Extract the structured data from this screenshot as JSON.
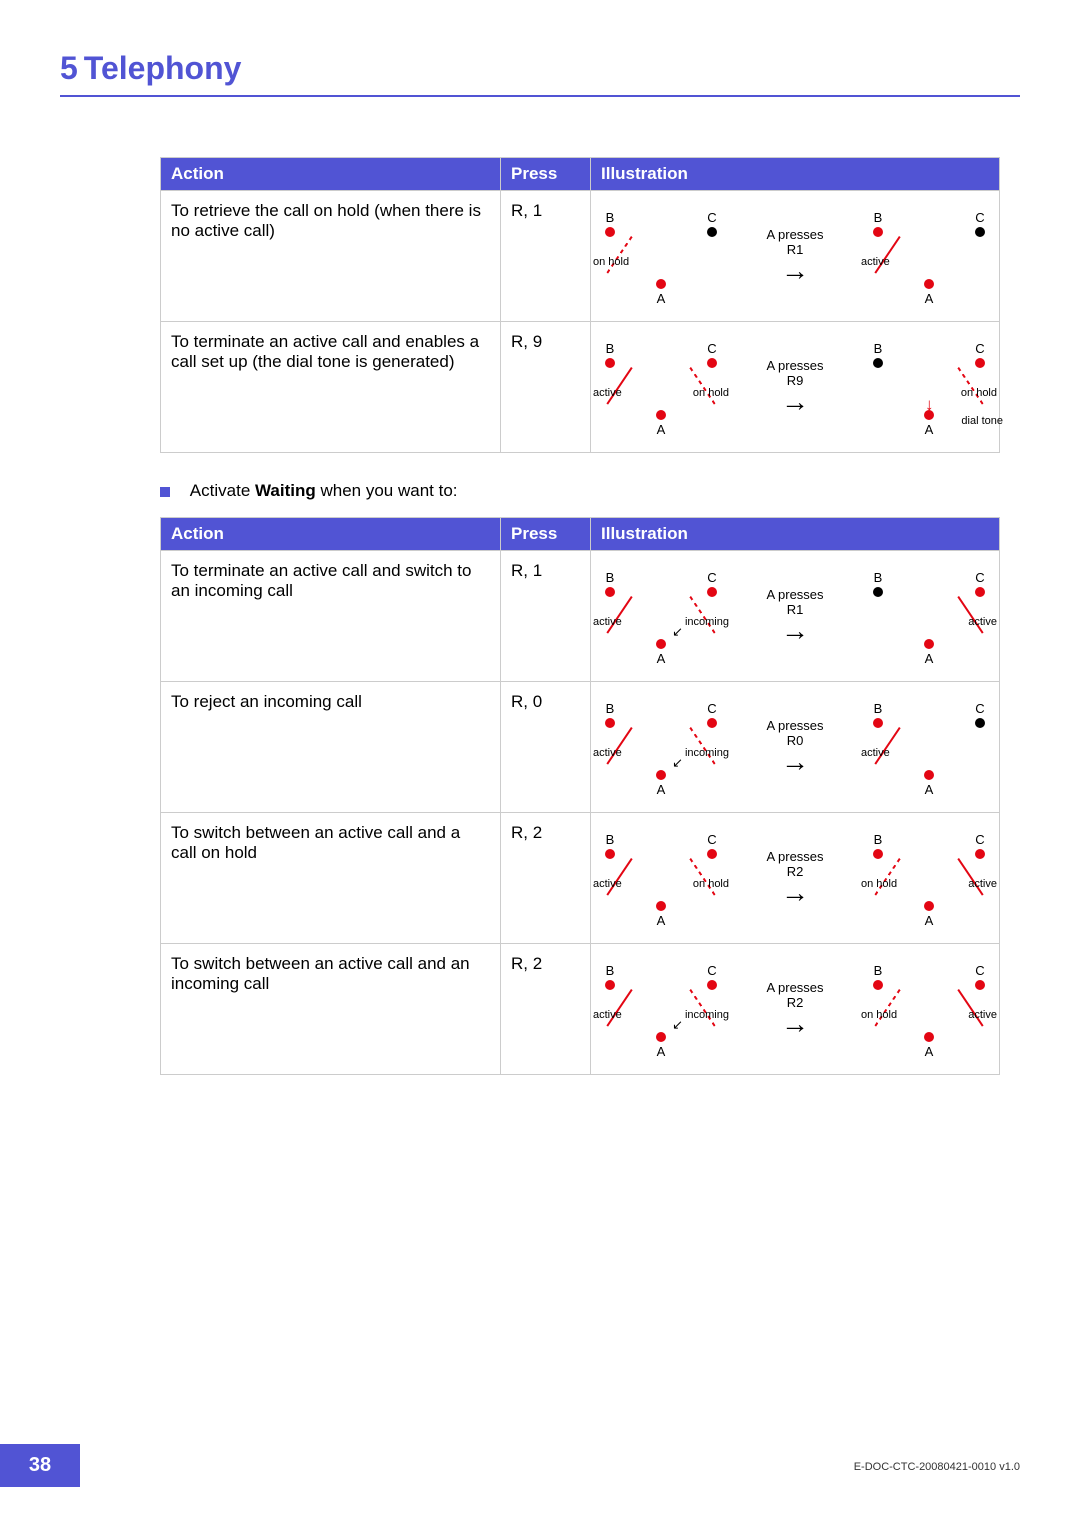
{
  "chapter": {
    "number": "5",
    "title": "Telephony"
  },
  "colors": {
    "accent": "#5154d4",
    "red": "#e30613",
    "black": "#000000"
  },
  "labels": {
    "A": "A",
    "B": "B",
    "C": "C",
    "active": "active",
    "on_hold": "on hold",
    "incoming": "incoming",
    "dial_tone": "dial tone",
    "a_presses": "A presses"
  },
  "headers": {
    "action": "Action",
    "press": "Press",
    "illustration": "Illustration"
  },
  "bullet": {
    "prefix": "Activate ",
    "bold": "Waiting",
    "suffix": " when you want to:"
  },
  "table1": [
    {
      "action": "To retrieve the call on hold (when there is no active call)",
      "press": "R, 1",
      "press_label": "R1",
      "before": {
        "B": {
          "color": "red"
        },
        "C": {
          "color": "black"
        },
        "AB": {
          "style": "dashed",
          "color": "red",
          "label": "on hold"
        },
        "AC": null
      },
      "after": {
        "B": {
          "color": "red"
        },
        "C": {
          "color": "black"
        },
        "AB": {
          "style": "solid",
          "color": "red",
          "label": "active"
        },
        "AC": null
      }
    },
    {
      "action": "To terminate an active call and enables a call set up (the dial tone is generated)",
      "press": "R, 9",
      "press_label": "R9",
      "before": {
        "B": {
          "color": "red"
        },
        "C": {
          "color": "red"
        },
        "AB": {
          "style": "solid",
          "color": "red",
          "label": "active"
        },
        "AC": {
          "style": "dashed",
          "color": "red",
          "label": "on hold"
        }
      },
      "after": {
        "B": {
          "color": "black"
        },
        "C": {
          "color": "red"
        },
        "AB": null,
        "AC": {
          "style": "dashed",
          "color": "red",
          "label": "on hold"
        },
        "extra_label": "dial tone"
      }
    }
  ],
  "table2": [
    {
      "action": "To terminate an active call and switch to an incoming call",
      "press": "R, 1",
      "press_label": "R1",
      "before": {
        "B": {
          "color": "red"
        },
        "C": {
          "color": "red"
        },
        "AB": {
          "style": "solid",
          "color": "red",
          "label": "active"
        },
        "AC": {
          "style": "dashed",
          "color": "red",
          "label": "incoming",
          "arrow": true
        }
      },
      "after": {
        "B": {
          "color": "black"
        },
        "C": {
          "color": "red"
        },
        "AB": null,
        "AC": {
          "style": "solid",
          "color": "red",
          "label": "active"
        }
      }
    },
    {
      "action": "To reject an incoming call",
      "press": "R, 0",
      "press_label": "R0",
      "before": {
        "B": {
          "color": "red"
        },
        "C": {
          "color": "red"
        },
        "AB": {
          "style": "solid",
          "color": "red",
          "label": "active"
        },
        "AC": {
          "style": "dashed",
          "color": "red",
          "label": "incoming",
          "arrow": true
        }
      },
      "after": {
        "B": {
          "color": "red"
        },
        "C": {
          "color": "black"
        },
        "AB": {
          "style": "solid",
          "color": "red",
          "label": "active"
        },
        "AC": null
      }
    },
    {
      "action": "To switch between an active call and a call on hold",
      "press": "R, 2",
      "press_label": "R2",
      "before": {
        "B": {
          "color": "red"
        },
        "C": {
          "color": "red"
        },
        "AB": {
          "style": "solid",
          "color": "red",
          "label": "active"
        },
        "AC": {
          "style": "dashed",
          "color": "red",
          "label": "on hold"
        }
      },
      "after": {
        "B": {
          "color": "red"
        },
        "C": {
          "color": "red"
        },
        "AB": {
          "style": "dashed",
          "color": "red",
          "label": "on hold"
        },
        "AC": {
          "style": "solid",
          "color": "red",
          "label": "active"
        }
      }
    },
    {
      "action": "To switch between an active call and an incoming call",
      "press": "R, 2",
      "press_label": "R2",
      "before": {
        "B": {
          "color": "red"
        },
        "C": {
          "color": "red"
        },
        "AB": {
          "style": "solid",
          "color": "red",
          "label": "active"
        },
        "AC": {
          "style": "dashed",
          "color": "red",
          "label": "incoming",
          "arrow": true
        }
      },
      "after": {
        "B": {
          "color": "red"
        },
        "C": {
          "color": "red"
        },
        "AB": {
          "style": "dashed",
          "color": "red",
          "label": "on hold"
        },
        "AC": {
          "style": "solid",
          "color": "red",
          "label": "active"
        }
      }
    }
  ],
  "footer": {
    "page": "38",
    "doc_id": "E-DOC-CTC-20080421-0010 v1.0"
  }
}
